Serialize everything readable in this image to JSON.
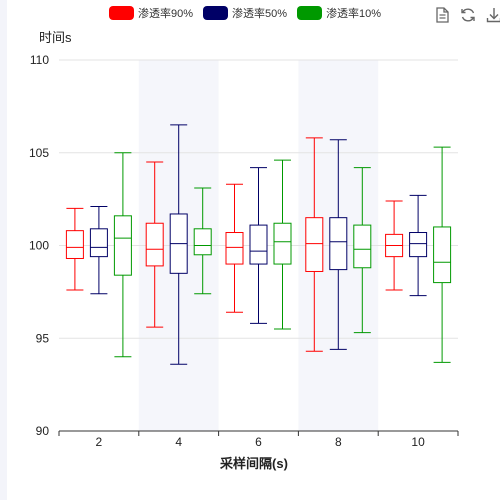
{
  "chart_data": {
    "type": "boxplot",
    "title": "",
    "xlabel": "采样间隔(s)",
    "ylabel": "时间s",
    "categories": [
      "2",
      "4",
      "6",
      "8",
      "10"
    ],
    "ylim": [
      90,
      110
    ],
    "yticks": [
      90,
      95,
      100,
      105,
      110
    ],
    "grid": true,
    "legend_position": "top",
    "series": [
      {
        "name": "渗透率90%",
        "color": "#ff0000",
        "boxes": [
          {
            "min": 97.6,
            "q1": 99.3,
            "median": 99.9,
            "q3": 100.8,
            "max": 102.0
          },
          {
            "min": 95.6,
            "q1": 98.9,
            "median": 99.8,
            "q3": 101.2,
            "max": 104.5
          },
          {
            "min": 96.4,
            "q1": 99.0,
            "median": 99.9,
            "q3": 100.7,
            "max": 103.3
          },
          {
            "min": 94.3,
            "q1": 98.6,
            "median": 100.1,
            "q3": 101.5,
            "max": 105.8
          },
          {
            "min": 97.6,
            "q1": 99.4,
            "median": 100.0,
            "q3": 100.6,
            "max": 102.4
          }
        ]
      },
      {
        "name": "渗透率50%",
        "color": "#000066",
        "boxes": [
          {
            "min": 97.4,
            "q1": 99.4,
            "median": 99.9,
            "q3": 100.9,
            "max": 102.1
          },
          {
            "min": 93.6,
            "q1": 98.5,
            "median": 100.1,
            "q3": 101.7,
            "max": 106.5
          },
          {
            "min": 95.8,
            "q1": 99.0,
            "median": 99.7,
            "q3": 101.1,
            "max": 104.2
          },
          {
            "min": 94.4,
            "q1": 98.7,
            "median": 100.2,
            "q3": 101.5,
            "max": 105.7
          },
          {
            "min": 97.3,
            "q1": 99.4,
            "median": 100.1,
            "q3": 100.7,
            "max": 102.7
          }
        ]
      },
      {
        "name": "渗透率10%",
        "color": "#009900",
        "boxes": [
          {
            "min": 94.0,
            "q1": 98.4,
            "median": 100.4,
            "q3": 101.6,
            "max": 105.0
          },
          {
            "min": 97.4,
            "q1": 99.5,
            "median": 100.0,
            "q3": 100.9,
            "max": 103.1
          },
          {
            "min": 95.5,
            "q1": 99.0,
            "median": 100.2,
            "q3": 101.2,
            "max": 104.6
          },
          {
            "min": 95.3,
            "q1": 98.8,
            "median": 99.8,
            "q3": 101.1,
            "max": 104.2
          },
          {
            "min": 93.7,
            "q1": 98.0,
            "median": 99.1,
            "q3": 101.0,
            "max": 105.3
          }
        ]
      }
    ],
    "bands": {
      "shaded_categories": [
        "4",
        "8"
      ],
      "band_color": "#f5f6fb"
    }
  },
  "toolbox": {
    "icons": [
      "data-view-icon",
      "refresh-icon",
      "download-icon"
    ]
  }
}
